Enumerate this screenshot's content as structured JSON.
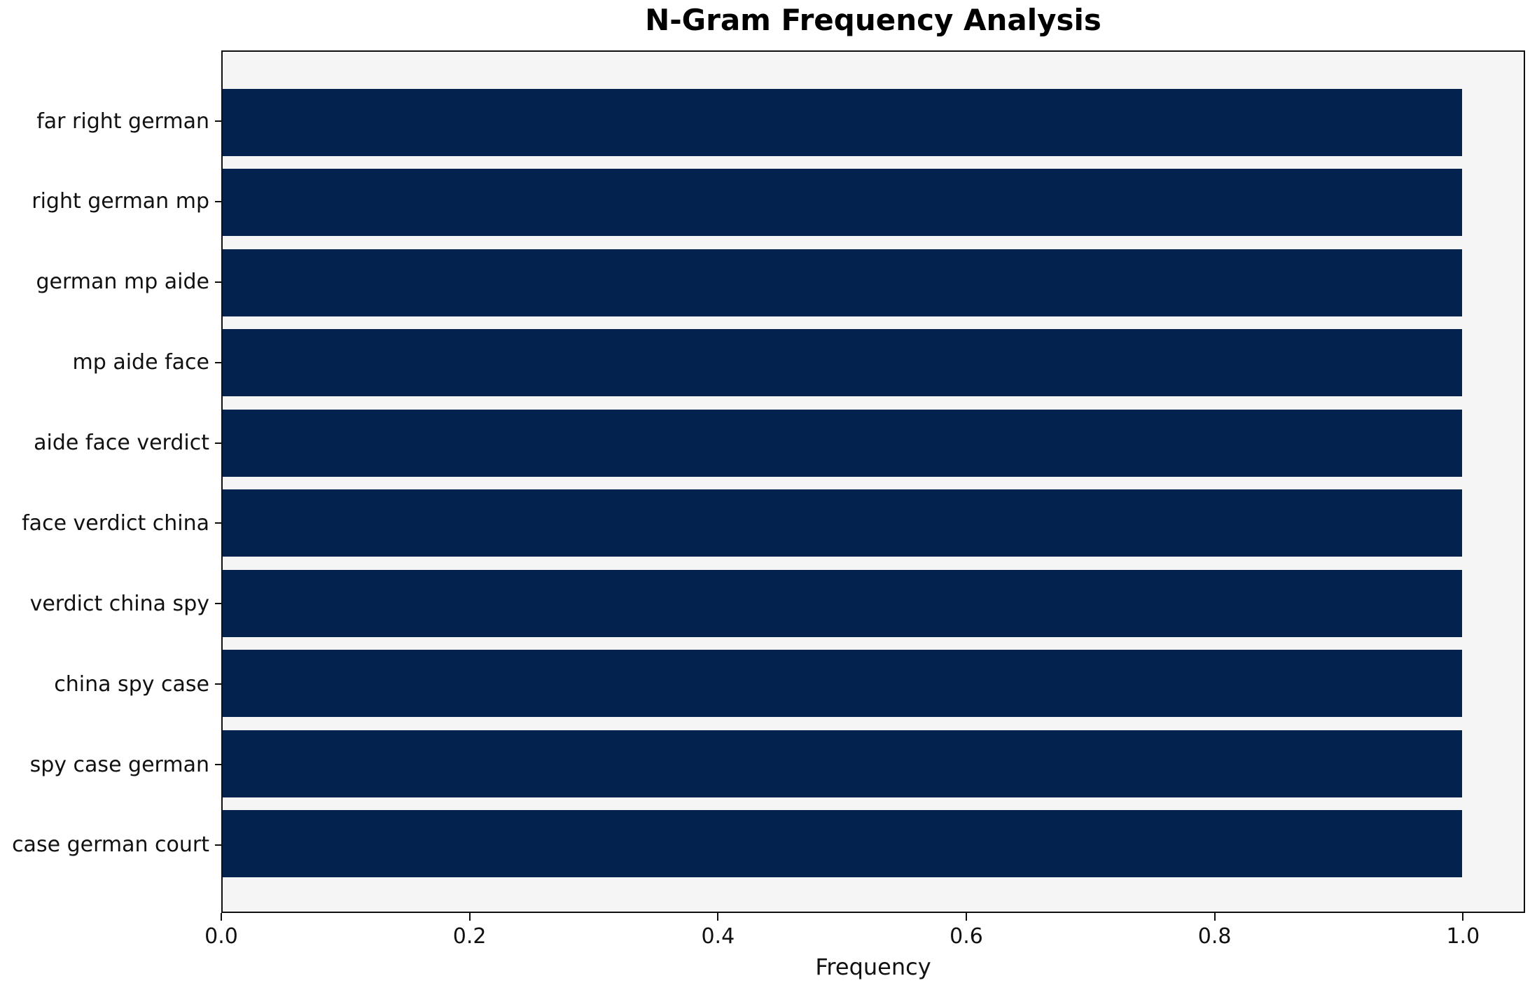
{
  "chart_data": {
    "type": "bar",
    "orientation": "horizontal",
    "title": "N-Gram Frequency Analysis",
    "xlabel": "Frequency",
    "ylabel": "",
    "categories": [
      "far right german",
      "right german mp",
      "german mp aide",
      "mp aide face",
      "aide face verdict",
      "face verdict china",
      "verdict china spy",
      "china spy case",
      "spy case german",
      "case german court"
    ],
    "values": [
      1.0,
      1.0,
      1.0,
      1.0,
      1.0,
      1.0,
      1.0,
      1.0,
      1.0,
      1.0
    ],
    "xlim": [
      0.0,
      1.05
    ],
    "xticks": [
      0.0,
      0.2,
      0.4,
      0.6,
      0.8,
      1.0
    ],
    "xtick_labels": [
      "0.0",
      "0.2",
      "0.4",
      "0.6",
      "0.8",
      "1.0"
    ],
    "grid": false,
    "legend": null,
    "bar_color": "#03234e",
    "plot_bg": "#f5f5f6",
    "figure_bg": "#ffffff",
    "axis_color": "#0f0f0f",
    "text_color": "#111111"
  }
}
